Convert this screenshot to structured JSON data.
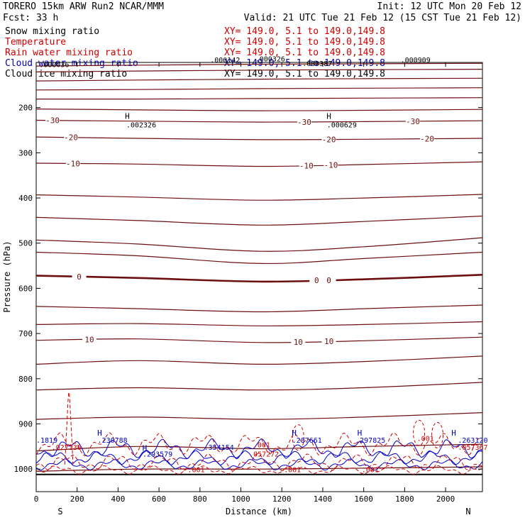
{
  "header": {
    "model": "TORERO  15km ARW   Run2    NCAR/MMM",
    "init": "Init: 12 UTC Mon 20 Feb 12",
    "fcst": "Fcst:   33 h",
    "valid": "Valid: 21 UTC Tue 21 Feb 12 (15 CST Tue 21 Feb 12)"
  },
  "legend": [
    {
      "label": "Snow mixing ratio",
      "xy": "XY= 149.0,  5.1 to 149.0,149.8",
      "color": "#000000",
      "xy_color": "#cc0000"
    },
    {
      "label": "Temperature",
      "xy": "XY= 149.0,  5.1 to 149.0,149.8",
      "color": "#cc0000",
      "xy_color": "#cc0000"
    },
    {
      "label": "Rain water mixing ratio",
      "xy": "XY= 149.0,  5.1 to 149.0,149.8",
      "color": "#cc0000",
      "xy_color": "#cc0000"
    },
    {
      "label": "Cloud water mixing ratio",
      "xy": "XY= 149.0,  5.1 to 149.0,149.8",
      "color": "#0000bb",
      "xy_color": "#0000bb"
    },
    {
      "label": "Cloud ice mixing ratio",
      "xy": "XY= 149.0,  5.1 to 149.0,149.8",
      "color": "#000000",
      "xy_color": "#000000"
    }
  ],
  "chart_data": {
    "type": "line",
    "xlabel": "Distance (km)",
    "ylabel": "Pressure (hPa)",
    "xlim": [
      0,
      2180
    ],
    "ylim": [
      1050,
      100
    ],
    "x_ticks": [
      0,
      200,
      400,
      600,
      800,
      1000,
      1200,
      1400,
      1600,
      1800,
      2000
    ],
    "y_ticks": [
      200,
      300,
      400,
      500,
      600,
      700,
      800,
      900,
      1000
    ],
    "x_end_labels": {
      "left": "S",
      "right": "N"
    },
    "temperature_isotherms": [
      {
        "level": -30,
        "p": [
          228,
          230,
          232,
          231,
          229
        ],
        "labels": [
          {
            "x": 80,
            "text": "-30"
          },
          {
            "x": 1310,
            "text": "-30"
          },
          {
            "x": 1840,
            "text": "-30"
          }
        ]
      },
      {
        "level": -20,
        "p": [
          265,
          268,
          271,
          270,
          268
        ],
        "labels": [
          {
            "x": 170,
            "text": "-20"
          },
          {
            "x": 1430,
            "text": "-20"
          },
          {
            "x": 1910,
            "text": "-20"
          }
        ]
      },
      {
        "level": -10,
        "p": [
          323,
          325,
          330,
          326,
          320
        ],
        "labels": [
          {
            "x": 180,
            "text": "-10"
          },
          {
            "x": 1320,
            "text": "-10"
          },
          {
            "x": 1440,
            "text": "-10"
          }
        ]
      },
      {
        "level": 0,
        "p": [
          572,
          577,
          585,
          580,
          570
        ],
        "labels": [
          {
            "x": 210,
            "text": "0"
          },
          {
            "x": 1370,
            "text": "0"
          },
          {
            "x": 1430,
            "text": "0"
          }
        ]
      },
      {
        "level": 10,
        "p": [
          715,
          712,
          720,
          716,
          708
        ],
        "labels": [
          {
            "x": 260,
            "text": "10"
          },
          {
            "x": 1280,
            "text": "10"
          },
          {
            "x": 1430,
            "text": "10"
          }
        ]
      }
    ],
    "isotherm_x": [
      0,
      500,
      1100,
      1600,
      2180
    ],
    "unlabeled_isotherms": [
      [
        108,
        106,
        104,
        103,
        102
      ],
      [
        121,
        119,
        117,
        116,
        115
      ],
      [
        141,
        139,
        137,
        136,
        135
      ],
      [
        161,
        160,
        158,
        157,
        156
      ],
      [
        181,
        181,
        180,
        179,
        178
      ],
      [
        203,
        205,
        207,
        206,
        204
      ],
      [
        393,
        398,
        405,
        400,
        392
      ],
      [
        443,
        450,
        460,
        452,
        440
      ],
      [
        493,
        502,
        518,
        508,
        488
      ],
      [
        520,
        528,
        545,
        534,
        520
      ],
      [
        640,
        645,
        652,
        645,
        637
      ],
      [
        680,
        678,
        683,
        680,
        674
      ],
      [
        768,
        760,
        768,
        762,
        750
      ],
      [
        825,
        820,
        825,
        820,
        808
      ],
      [
        890,
        885,
        890,
        885,
        875
      ],
      [
        960,
        950,
        955,
        950,
        945
      ],
      [
        1005,
        1000,
        1000,
        998,
        995
      ]
    ],
    "annotations": [
      {
        "x": 15,
        "p": 110,
        "text": ".000036"
      },
      {
        "x": 850,
        "p": 100,
        "text": ".000142"
      },
      {
        "x": 1070,
        "p": 98,
        "text": ".000326"
      },
      {
        "x": 1300,
        "p": 108,
        "text": ".000387"
      },
      {
        "x": 1780,
        "p": 100,
        "text": ".000909"
      },
      {
        "x": 440,
        "p": 244,
        "text": ".002326"
      },
      {
        "x": 1420,
        "p": 244,
        "text": ".000629"
      },
      {
        "x": 0,
        "p": 942,
        "text": ".1819"
      },
      {
        "x": 75,
        "p": 957,
        "text": ".027136"
      },
      {
        "x": 300,
        "p": 942,
        "text": ".230788"
      },
      {
        "x": 520,
        "p": 972,
        "text": ".293579"
      },
      {
        "x": 820,
        "p": 957,
        "text": ".354154"
      },
      {
        "x": 1060,
        "p": 952,
        "text": ".001"
      },
      {
        "x": 1040,
        "p": 972,
        "text": ".057272"
      },
      {
        "x": 1250,
        "p": 942,
        "text": ".287661"
      },
      {
        "x": 1560,
        "p": 942,
        "text": ".297825"
      },
      {
        "x": 1860,
        "p": 938,
        "text": ".001"
      },
      {
        "x": 2060,
        "p": 942,
        "text": ".263120"
      },
      {
        "x": 2060,
        "p": 957,
        "text": ".057367"
      },
      {
        "x": 740,
        "p": 1007,
        "text": ".001"
      },
      {
        "x": 1210,
        "p": 1007,
        "text": ".001"
      },
      {
        "x": 1590,
        "p": 1007,
        "text": ".001"
      }
    ],
    "highs": [
      {
        "x": 445,
        "p": 225
      },
      {
        "x": 1430,
        "p": 225
      },
      {
        "x": 310,
        "p": 926
      },
      {
        "x": 530,
        "p": 960
      },
      {
        "x": 1260,
        "p": 926
      },
      {
        "x": 1580,
        "p": 926
      },
      {
        "x": 2040,
        "p": 926
      }
    ],
    "surface_pressure": 1012
  }
}
